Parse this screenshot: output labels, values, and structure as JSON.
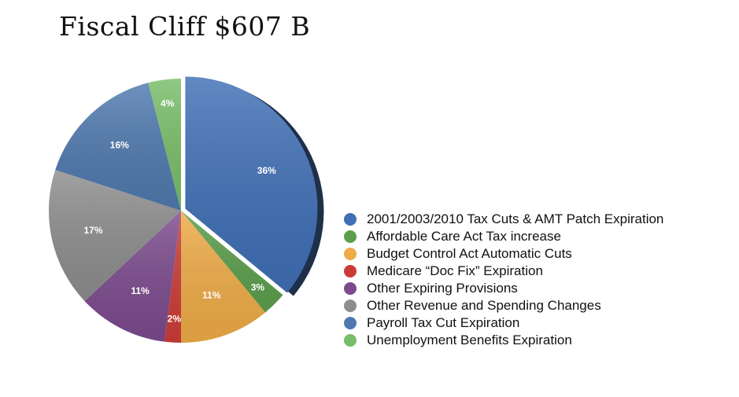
{
  "chart_data": {
    "type": "pie",
    "title": "Fiscal Cliff $607 B",
    "categories": [
      "2001/2003/2010 Tax Cuts & AMT Patch Expiration",
      "Affordable Care Act Tax increase",
      "Budget Control Act Automatic Cuts",
      "Medicare “Doc Fix” Expiration",
      "Other Expiring Provisions",
      "Other Revenue and Spending Changes",
      "Payroll Tax Cut Expiration",
      "Unemployment Benefits Expiration"
    ],
    "values": [
      36,
      3,
      11,
      2,
      11,
      17,
      16,
      4
    ],
    "labels": [
      "36%",
      "3%",
      "11%",
      "2%",
      "11%",
      "17%",
      "16%",
      "4%"
    ],
    "colors": [
      "#3f6fb5",
      "#5b9e4c",
      "#eeab46",
      "#cc3c37",
      "#7b4a8d",
      "#8d8d8d",
      "#4f79ae",
      "#78bd68"
    ],
    "legend_position": "right"
  }
}
